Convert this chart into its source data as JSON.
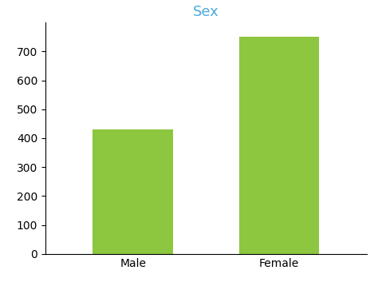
{
  "categories": [
    "Male",
    "Female"
  ],
  "values": [
    430,
    752
  ],
  "bar_color": "#8dc63f",
  "title": "Sex",
  "title_color": "#4dabde",
  "title_fontsize": 13,
  "ylim": [
    0,
    800
  ],
  "yticks": [
    0,
    100,
    200,
    300,
    400,
    500,
    600,
    700
  ],
  "bar_width": 0.55,
  "background_color": "#ffffff",
  "tick_fontsize": 10,
  "xlabel_fontsize": 10,
  "fig_width": 4.74,
  "fig_height": 3.53,
  "dpi": 100
}
